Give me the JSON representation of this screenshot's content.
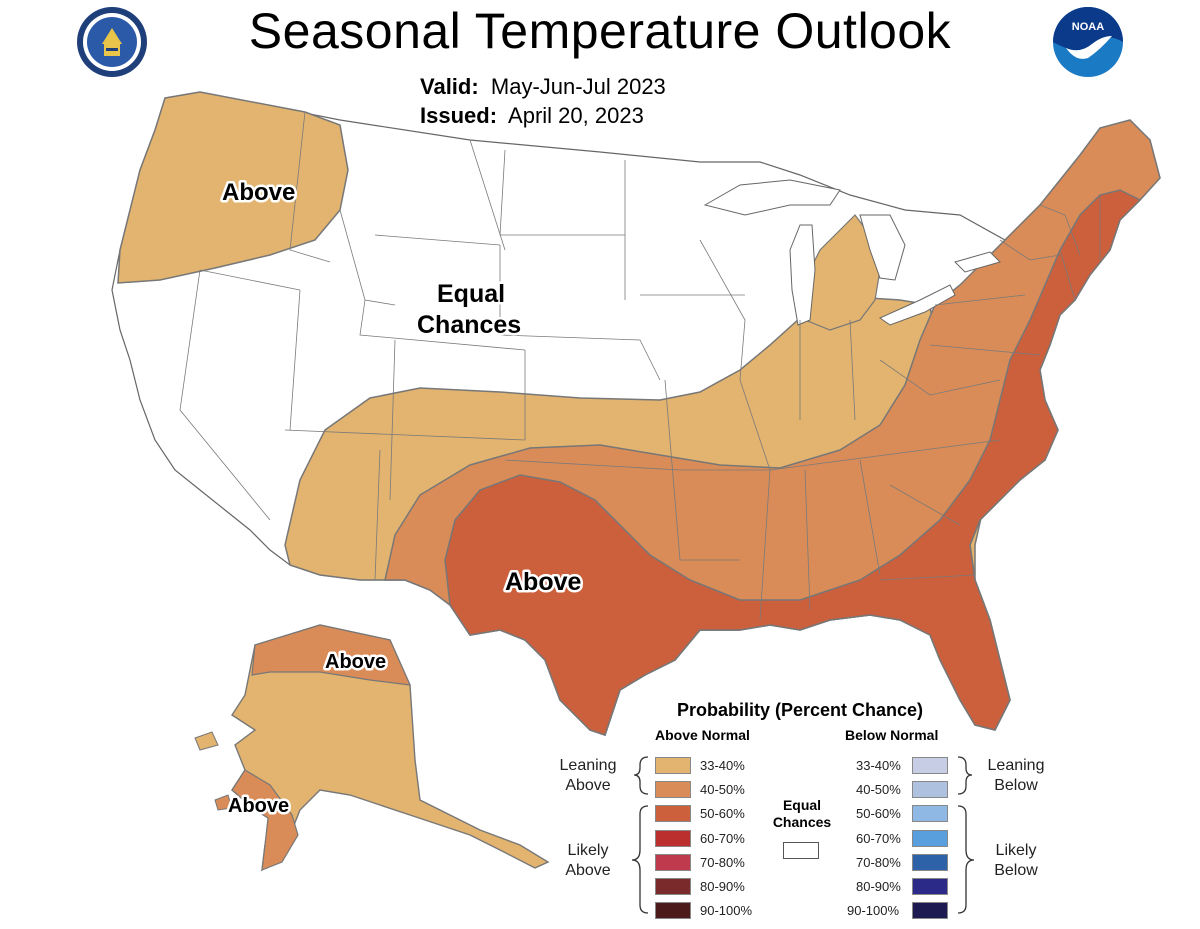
{
  "header": {
    "title": "Seasonal Temperature Outlook",
    "valid_label": "Valid:",
    "valid_value": "May-Jun-Jul 2023",
    "issued_label": "Issued:",
    "issued_value": "April 20, 2023"
  },
  "logos": {
    "left": "department-of-commerce-seal",
    "right": "noaa-logo",
    "noaa_text": "NOAA"
  },
  "map_labels": {
    "northwest": "Above",
    "equal_line1": "Equal",
    "equal_line2": "Chances",
    "south": "Above",
    "alaska_north": "Above",
    "alaska_southwest": "Above"
  },
  "colors": {
    "above_33_40": "#e2b46f",
    "above_40_50": "#d98c58",
    "above_50_60": "#cc5f3c",
    "above_60_70": "#bb2f2f",
    "above_70_80": "#c03a4e",
    "above_80_90": "#7a2a2a",
    "above_90_100": "#4c1a1a",
    "below_33_40": "#c8cde6",
    "below_40_50": "#aec2e0",
    "below_50_60": "#8fb8e4",
    "below_60_70": "#5a9fdd",
    "below_70_80": "#2d61a8",
    "below_80_90": "#2c2a88",
    "below_90_100": "#1c1a50",
    "noaa_blue": "#1a7ac4"
  },
  "legend": {
    "title": "Probability (Percent Chance)",
    "above_header": "Above Normal",
    "below_header": "Below Normal",
    "leaning_above": [
      "Leaning",
      "Above"
    ],
    "likely_above": [
      "Likely",
      "Above"
    ],
    "leaning_below": [
      "Leaning",
      "Below"
    ],
    "likely_below": [
      "Likely",
      "Below"
    ],
    "equal_chances": [
      "Equal",
      "Chances"
    ],
    "ranges": [
      "33-40%",
      "40-50%",
      "50-60%",
      "60-70%",
      "70-80%",
      "80-90%",
      "90-100%"
    ]
  }
}
